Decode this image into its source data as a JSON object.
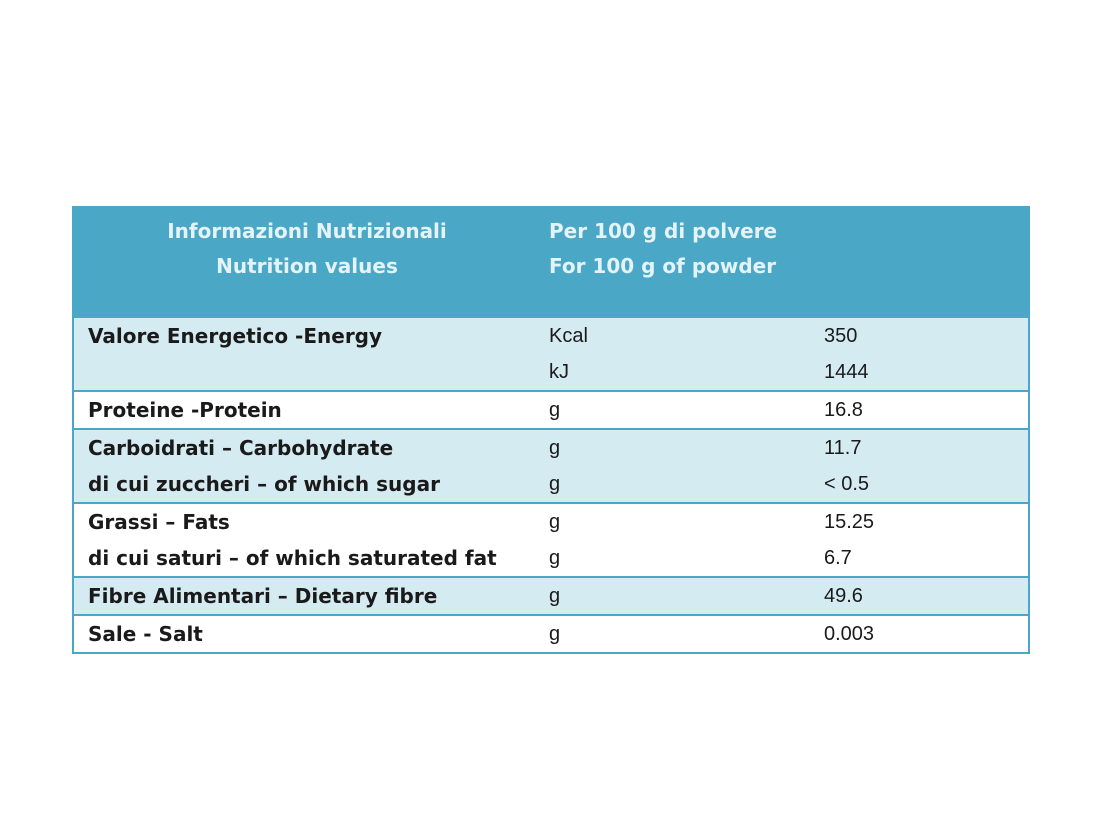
{
  "header": {
    "col1_line1": "Informazioni Nutrizionali",
    "col1_line2": "Nutrition values",
    "col2_line1": "Per 100 g di polvere",
    "col2_line2": "For  100 g of powder"
  },
  "rows": [
    {
      "lines": [
        {
          "label": "Valore Energetico -Energy",
          "unit": "Kcal",
          "value": "350"
        },
        {
          "label": "",
          "unit": "kJ",
          "value": "1444"
        }
      ]
    },
    {
      "lines": [
        {
          "label": "Proteine -Protein",
          "unit": "g",
          "value": "16.8"
        }
      ]
    },
    {
      "lines": [
        {
          "label": "Carboidrati – Carbohydrate",
          "unit": "g",
          "value": "11.7"
        },
        {
          "label": "di cui zuccheri – of which sugar",
          "unit": "g",
          "value": "< 0.5"
        }
      ]
    },
    {
      "lines": [
        {
          "label": "Grassi – Fats",
          "unit": "g",
          "value": "15.25"
        },
        {
          "label": "di cui saturi – of which saturated fat",
          "unit": "g",
          "value": "6.7"
        }
      ]
    },
    {
      "lines": [
        {
          "label": "Fibre Alimentari – Dietary fibre",
          "unit": "g",
          "value": "49.6"
        }
      ]
    },
    {
      "lines": [
        {
          "label": "Sale - Salt",
          "unit": "g",
          "value": "0.003"
        }
      ]
    }
  ],
  "colors": {
    "header_bg": "#4aa8c6",
    "header_text": "#e4f3f8",
    "shaded_row": "#d5ebf2",
    "border": "#4aa8c6"
  }
}
